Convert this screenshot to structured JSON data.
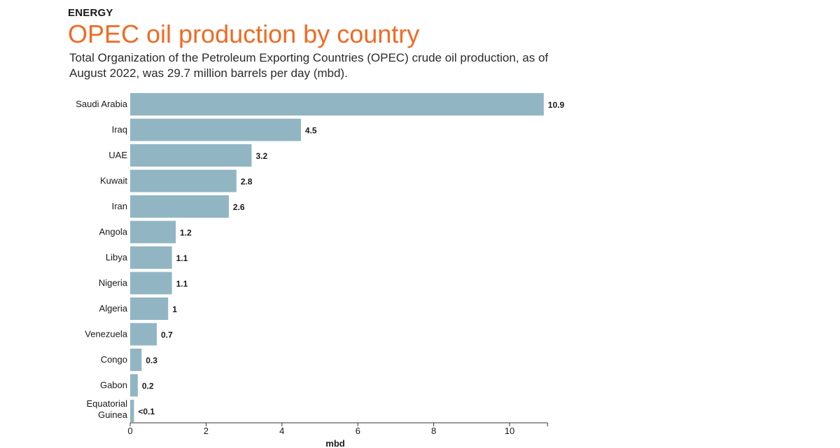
{
  "header": {
    "kicker": "ENERGY",
    "title": "OPEC oil production by country",
    "subtitle": "Total Organization of the Petroleum Exporting Countries (OPEC) crude oil production, as of August 2022, was 29.7 million barrels per day (mbd)."
  },
  "colors": {
    "title": "#f06a24",
    "bar": "#91b5c3",
    "text": "#1a1a1a"
  },
  "chart_data": {
    "type": "bar",
    "orientation": "horizontal",
    "categories": [
      "Saudi Arabia",
      "Iraq",
      "UAE",
      "Kuwait",
      "Iran",
      "Angola",
      "Libya",
      "Nigeria",
      "Algeria",
      "Venezuela",
      "Congo",
      "Gabon",
      "Equatorial Guinea"
    ],
    "values": [
      10.9,
      4.5,
      3.2,
      2.8,
      2.6,
      1.2,
      1.1,
      1.1,
      1,
      0.7,
      0.3,
      0.2,
      0.1
    ],
    "value_labels": [
      "10.9",
      "4.5",
      "3.2",
      "2.8",
      "2.6",
      "1.2",
      "1.1",
      "1.1",
      "1",
      "0.7",
      "0.3",
      "0.2",
      "<0.1"
    ],
    "xlabel": "mbd",
    "ylabel": "",
    "xlim": [
      0,
      11
    ],
    "xticks": [
      0,
      2,
      4,
      6,
      8,
      10
    ],
    "grid": false,
    "legend": "none"
  }
}
